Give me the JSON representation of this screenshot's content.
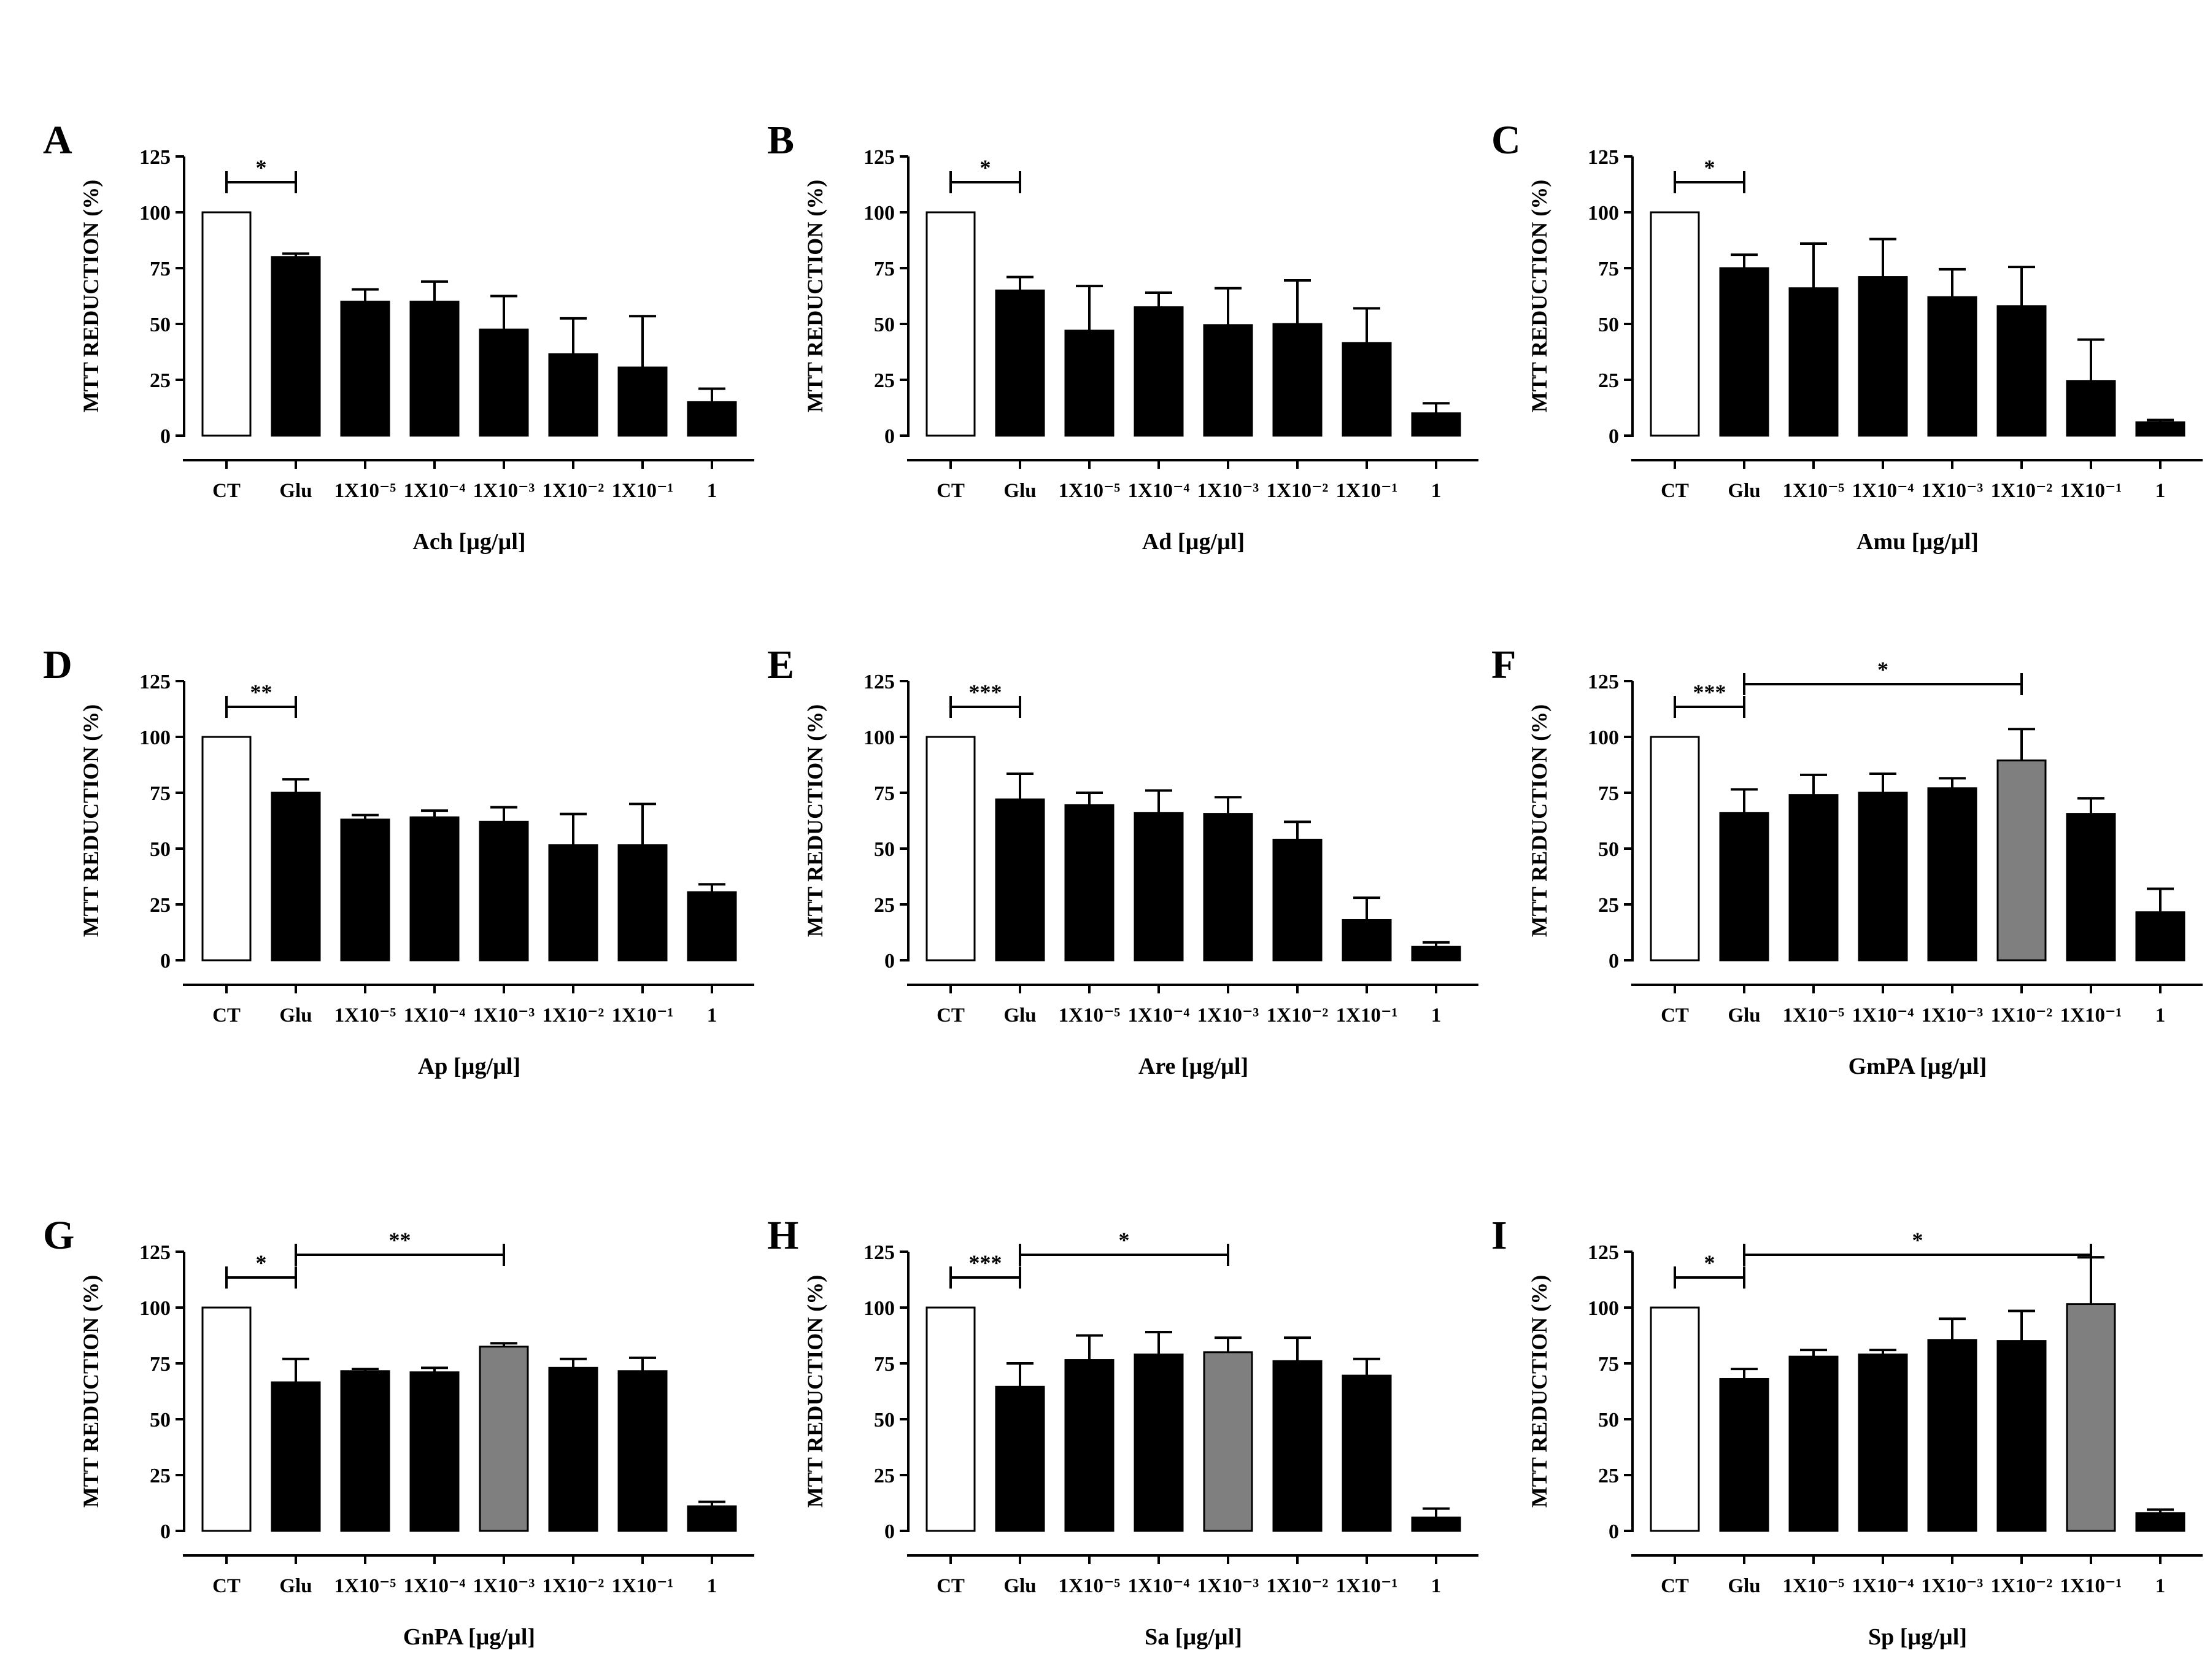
{
  "figure": {
    "bar_colors": {
      "control": "#ffffff",
      "treated": "#000000",
      "highlight": "#7f7f7f",
      "stroke": "#000000"
    },
    "y_axis_label": "MTT  REDUCTION (%)",
    "y_ticks": [
      "0",
      "25",
      "50",
      "75",
      "100",
      "125"
    ]
  },
  "chart_data": [
    {
      "panel": "A",
      "type": "bar",
      "title": "",
      "xlabel": "Ach [µg/µl]",
      "ylabel": "MTT  REDUCTION (%)",
      "ylim": [
        0,
        125
      ],
      "yticks": [
        0,
        25,
        50,
        75,
        100,
        125
      ],
      "categories": [
        "CT",
        "Glu",
        "1X10⁻⁵",
        "1X10⁻⁴",
        "1X10⁻³",
        "1X10⁻²",
        "1X10⁻¹",
        "1"
      ],
      "values": [
        100,
        80,
        60,
        60,
        47.5,
        36.5,
        30.5,
        15
      ],
      "errors": [
        0,
        1.5,
        5.5,
        9,
        15,
        16,
        23,
        6
      ],
      "highlight": [],
      "significance": [
        {
          "from": 0,
          "to": 1,
          "label": "*"
        }
      ]
    },
    {
      "panel": "B",
      "type": "bar",
      "title": "",
      "xlabel": "Ad [µg/µl]",
      "ylabel": "MTT REDUCTION (%)",
      "ylim": [
        0,
        125
      ],
      "yticks": [
        0,
        25,
        50,
        75,
        100,
        125
      ],
      "categories": [
        "CT",
        "Glu",
        "1X10⁻⁵",
        "1X10⁻⁴",
        "1X10⁻³",
        "1X10⁻²",
        "1X10⁻¹",
        "1"
      ],
      "values": [
        100,
        65,
        47,
        57.5,
        49.5,
        50,
        41.5,
        10
      ],
      "errors": [
        0,
        6,
        20,
        6.5,
        16.5,
        19.5,
        15.5,
        4.5
      ],
      "highlight": [],
      "significance": [
        {
          "from": 0,
          "to": 1,
          "label": "*"
        }
      ]
    },
    {
      "panel": "C",
      "type": "bar",
      "title": "",
      "xlabel": "Amu [µg/µl]",
      "ylabel": "MTT REDUCTION  (%)",
      "ylim": [
        0,
        125
      ],
      "yticks": [
        0,
        25,
        50,
        75,
        100,
        125
      ],
      "categories": [
        "CT",
        "Glu",
        "1X10⁻⁵",
        "1X10⁻⁴",
        "1X10⁻³",
        "1X10⁻²",
        "1X10⁻¹",
        "1"
      ],
      "values": [
        100,
        75,
        66,
        71,
        62,
        58,
        24.5,
        6
      ],
      "errors": [
        0,
        6,
        20,
        17,
        12.5,
        17.5,
        18.5,
        1
      ],
      "highlight": [],
      "significance": [
        {
          "from": 0,
          "to": 1,
          "label": "*"
        }
      ]
    },
    {
      "panel": "D",
      "type": "bar",
      "title": "",
      "xlabel": "Ap  [µg/µl]",
      "ylabel": "MTT  REDUCTION  (%)",
      "ylim": [
        0,
        125
      ],
      "yticks": [
        0,
        25,
        50,
        75,
        100,
        125
      ],
      "categories": [
        "CT",
        "Glu",
        "1X10⁻⁵",
        "1X10⁻⁴",
        "1X10⁻³",
        "1X10⁻²",
        "1X10⁻¹",
        "1"
      ],
      "values": [
        100,
        75,
        63,
        64,
        62,
        51.5,
        51.5,
        30.5
      ],
      "errors": [
        0,
        6,
        2,
        3,
        6.5,
        14,
        18.5,
        3.5
      ],
      "highlight": [],
      "significance": [
        {
          "from": 0,
          "to": 1,
          "label": "**"
        }
      ]
    },
    {
      "panel": "E",
      "type": "bar",
      "title": "",
      "xlabel": "Are  [µg/µl]",
      "ylabel": "MTT  REDUCTION  (%)",
      "ylim": [
        0,
        125
      ],
      "yticks": [
        0,
        25,
        50,
        75,
        100,
        125
      ],
      "categories": [
        "CT",
        "Glu",
        "1X10⁻⁵",
        "1X10⁻⁴",
        "1X10⁻³",
        "1X10⁻²",
        "1X10⁻¹",
        "1"
      ],
      "values": [
        100,
        72,
        69.5,
        66,
        65.5,
        54,
        18,
        6
      ],
      "errors": [
        0,
        11.5,
        5.5,
        10,
        7.5,
        8,
        10,
        2
      ],
      "highlight": [],
      "significance": [
        {
          "from": 0,
          "to": 1,
          "label": "***"
        }
      ]
    },
    {
      "panel": "F",
      "type": "bar",
      "title": "",
      "xlabel": "GmPA  [µg/µl]",
      "ylabel": "MTT  REDUCTION (%)",
      "ylim": [
        0,
        125
      ],
      "yticks": [
        0,
        25,
        50,
        75,
        100,
        125
      ],
      "categories": [
        "CT",
        "Glu",
        "1X10⁻⁵",
        "1X10⁻⁴",
        "1X10⁻³",
        "1X10⁻²",
        "1X10⁻¹",
        "1"
      ],
      "values": [
        100,
        66,
        74,
        75,
        77,
        89.5,
        65.5,
        21.5
      ],
      "errors": [
        0,
        10.5,
        9,
        8.5,
        4.5,
        14,
        7,
        10.5
      ],
      "highlight": [
        5
      ],
      "significance": [
        {
          "from": 0,
          "to": 1,
          "label": "***"
        },
        {
          "from": 1,
          "to": 5,
          "label": "*"
        }
      ]
    },
    {
      "panel": "G",
      "type": "bar",
      "title": "",
      "xlabel": "GnPA [µg/µl]",
      "ylabel": "MTT  REDUCTION (%)",
      "ylim": [
        0,
        125
      ],
      "yticks": [
        0,
        25,
        50,
        75,
        100,
        125
      ],
      "categories": [
        "CT",
        "Glu",
        "1X10⁻⁵",
        "1X10⁻⁴",
        "1X10⁻³",
        "1X10⁻²",
        "1X10⁻¹",
        "1"
      ],
      "values": [
        100,
        66.5,
        71.5,
        71,
        82.5,
        73,
        71.5,
        11
      ],
      "errors": [
        0,
        10.5,
        1,
        2,
        1.5,
        4,
        6,
        2
      ],
      "highlight": [
        4
      ],
      "significance": [
        {
          "from": 0,
          "to": 1,
          "label": "*"
        },
        {
          "from": 1,
          "to": 4,
          "label": "**"
        }
      ]
    },
    {
      "panel": "H",
      "type": "bar",
      "title": "",
      "xlabel": "Sa  [µg/µl]",
      "ylabel": "MTT  REDUCTION (%)",
      "ylim": [
        0,
        125
      ],
      "yticks": [
        0,
        25,
        50,
        75,
        100,
        125
      ],
      "categories": [
        "CT",
        "Glu",
        "1X10⁻⁵",
        "1X10⁻⁴",
        "1X10⁻³",
        "1X10⁻²",
        "1X10⁻¹",
        "1"
      ],
      "values": [
        100,
        64.5,
        76.5,
        79,
        80,
        76,
        69.5,
        6
      ],
      "errors": [
        0,
        10.5,
        11,
        10,
        6.5,
        10.5,
        7.5,
        4
      ],
      "highlight": [
        4
      ],
      "significance": [
        {
          "from": 0,
          "to": 1,
          "label": "***"
        },
        {
          "from": 1,
          "to": 4,
          "label": "*"
        }
      ]
    },
    {
      "panel": "I",
      "type": "bar",
      "title": "",
      "xlabel": "Sp  [µg/µl]",
      "ylabel": "MTT  REDUCTION (%)",
      "ylim": [
        0,
        125
      ],
      "yticks": [
        0,
        25,
        50,
        75,
        100,
        125
      ],
      "categories": [
        "CT",
        "Glu",
        "1X10⁻⁵",
        "1X10⁻⁴",
        "1X10⁻³",
        "1X10⁻²",
        "1X10⁻¹",
        "1"
      ],
      "values": [
        100,
        68,
        78,
        79,
        85.5,
        85,
        101.5,
        8
      ],
      "errors": [
        0,
        4.5,
        3,
        2,
        9.5,
        13.5,
        21,
        1.5
      ],
      "highlight": [
        6
      ],
      "significance": [
        {
          "from": 0,
          "to": 1,
          "label": "*"
        },
        {
          "from": 1,
          "to": 6,
          "label": "*"
        }
      ]
    }
  ]
}
